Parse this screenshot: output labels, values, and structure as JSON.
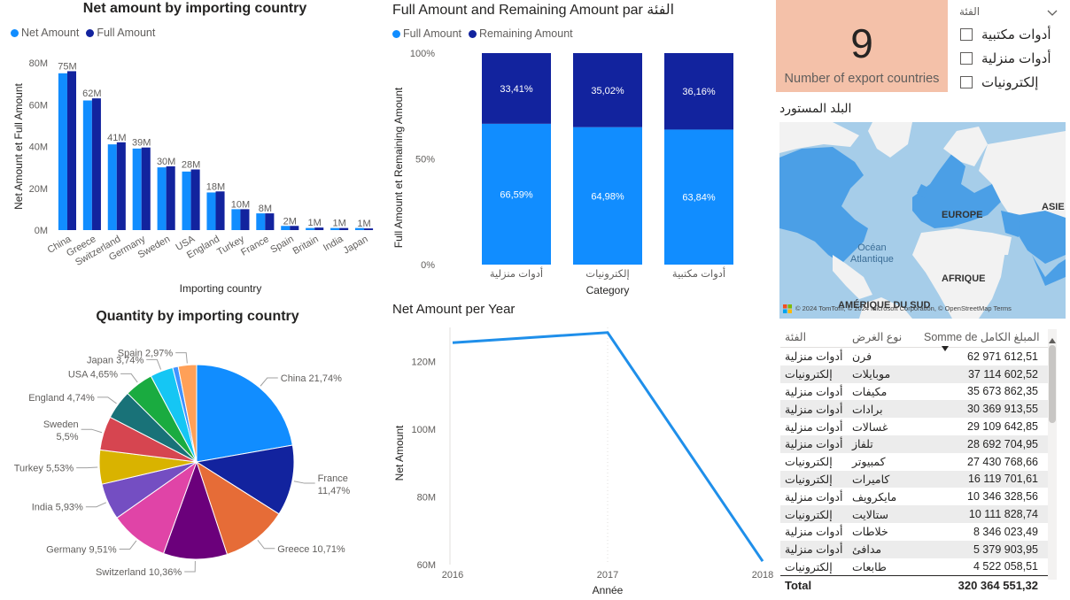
{
  "colors": {
    "net": "#118dff",
    "full": "#12239e",
    "line": "#1f8fea",
    "card_bg": "#f4c1a9",
    "map_water": "#a6cde9",
    "map_land": "#f2f2f2",
    "map_highlight": "#4b9fe6"
  },
  "chart_data": [
    {
      "type": "bar",
      "title": "Net amount by importing country",
      "xlabel": "Importing country",
      "ylabel": "Net Amount et Full Amount",
      "ylim": [
        0,
        80
      ],
      "yticks": [
        "0M",
        "20M",
        "40M",
        "60M",
        "80M"
      ],
      "legend_placement": "top-left",
      "categories": [
        "China",
        "Greece",
        "Switzerland",
        "Germany",
        "Sweden",
        "USA",
        "England",
        "Turkey",
        "France",
        "Spain",
        "Britain",
        "India",
        "Japan"
      ],
      "series": [
        {
          "name": "Net Amount",
          "values": [
            75,
            62,
            41,
            39,
            30,
            28,
            18,
            10,
            8,
            2,
            1,
            1,
            1
          ]
        },
        {
          "name": "Full Amount",
          "values": [
            76,
            63,
            42,
            39.5,
            30.5,
            29,
            18.5,
            10,
            8,
            2,
            1.2,
            1,
            0.8
          ]
        }
      ],
      "data_labels": [
        "75M",
        "62M",
        "41M",
        "39M",
        "30M",
        "28M",
        "18M",
        "10M",
        "8M",
        "2M",
        "1M",
        "1M",
        "1M"
      ]
    },
    {
      "type": "bar",
      "stacked": "100%",
      "title": "Full Amount and Remaining Amount par الفئة",
      "xlabel": "Category",
      "ylabel": "Full Amount et Remaining Amount",
      "yticks": [
        "0%",
        "50%",
        "100%"
      ],
      "legend_placement": "top-left",
      "categories": [
        "أدوات منزلية",
        "إلكترونيات",
        "أدوات مكتبية"
      ],
      "series": [
        {
          "name": "Full Amount",
          "values": [
            66.59,
            64.98,
            63.84
          ],
          "labels": [
            "66,59%",
            "64,98%",
            "63,84%"
          ]
        },
        {
          "name": "Remaining Amount",
          "values": [
            33.41,
            35.02,
            36.16
          ],
          "labels": [
            "33,41%",
            "35,02%",
            "36,16%"
          ]
        }
      ]
    },
    {
      "type": "pie",
      "title": "Quantity by importing country",
      "slices": [
        {
          "label": "China",
          "value": 21.74,
          "text": "China 21,74%",
          "color": "#118dff"
        },
        {
          "label": "France",
          "value": 11.47,
          "text": "France 11,47%",
          "color": "#12239e"
        },
        {
          "label": "Greece",
          "value": 10.71,
          "text": "Greece 10,71%",
          "color": "#e66c37"
        },
        {
          "label": "Switzerland",
          "value": 10.36,
          "text": "Switzerland 10,36%",
          "color": "#6b007b"
        },
        {
          "label": "Germany",
          "value": 9.51,
          "text": "Germany 9,51%",
          "color": "#e044a7"
        },
        {
          "label": "India",
          "value": 5.93,
          "text": "India 5,93%",
          "color": "#744ec2"
        },
        {
          "label": "Turkey",
          "value": 5.53,
          "text": "Turkey 5,53%",
          "color": "#d9b300"
        },
        {
          "label": "Sweden",
          "value": 5.5,
          "text": "Sweden 5,5%",
          "color": "#d64550"
        },
        {
          "label": "England",
          "value": 4.74,
          "text": "England 4,74%",
          "color": "#197278"
        },
        {
          "label": "USA",
          "value": 4.65,
          "text": "USA 4,65%",
          "color": "#1aab40"
        },
        {
          "label": "Japan",
          "value": 3.74,
          "text": "Japan 3,74%",
          "color": "#15c6f4"
        },
        {
          "label": "",
          "value": 0.9,
          "text": "",
          "color": "#4092ff"
        },
        {
          "label": "Spain",
          "value": 2.97,
          "text": "Spain 2,97%",
          "color": "#ffa058"
        }
      ]
    },
    {
      "type": "line",
      "title": "Net Amount per Year",
      "xlabel": "Année",
      "ylabel": "Net Amount",
      "x": [
        "2016",
        "2017",
        "2018"
      ],
      "ylim": [
        60,
        130
      ],
      "yticks": [
        "60M",
        "80M",
        "100M",
        "120M"
      ],
      "series": [
        {
          "name": "Net Amount",
          "values": [
            125.5,
            128.5,
            61
          ]
        }
      ]
    }
  ],
  "card": {
    "value": "9",
    "label": "Number of export countries"
  },
  "slicer": {
    "title": "الفئة",
    "items": [
      "أدوات مكتبية",
      "أدوات منزلية",
      "إلكترونيات"
    ]
  },
  "map": {
    "title": "البلد المستورد",
    "labels": {
      "europe": "EUROPE",
      "asie": "ASIE",
      "ocean": "Océan\nAtlantique",
      "afrique": "AFRIQUE",
      "amerique": "AMÉRIQUE DU SUD"
    },
    "copyright": "© 2024 TomTom, © 2024 Microsoft Corporation, © OpenStreetMap Terms"
  },
  "table": {
    "headers": {
      "category": "الفئة",
      "type": "نوع الغرض",
      "sum": "Somme de المبلغ الكامل"
    },
    "rows": [
      [
        "أدوات منزلية",
        "فرن",
        "62 971 612,51"
      ],
      [
        "إلكترونيات",
        "موبايلات",
        "37 114 602,52"
      ],
      [
        "أدوات منزلية",
        "مكيفات",
        "35 673 862,35"
      ],
      [
        "أدوات منزلية",
        "برادات",
        "30 369 913,55"
      ],
      [
        "أدوات منزلية",
        "غسالات",
        "29 109 642,85"
      ],
      [
        "أدوات منزلية",
        "تلفاز",
        "28 692 704,95"
      ],
      [
        "إلكترونيات",
        "كمبيوتر",
        "27 430 768,66"
      ],
      [
        "إلكترونيات",
        "كاميرات",
        "16 119 701,61"
      ],
      [
        "أدوات منزلية",
        "مايكرويف",
        "10 346 328,56"
      ],
      [
        "إلكترونيات",
        "ستالايت",
        "10 111 828,74"
      ],
      [
        "أدوات منزلية",
        "خلاطات",
        "8 346 023,49"
      ],
      [
        "أدوات منزلية",
        "مدافئ",
        "5 379 903,95"
      ],
      [
        "إلكترونيات",
        "طابعات",
        "4 522 058,51"
      ]
    ],
    "total_label": "Total",
    "total_value": "320 364 551,32"
  }
}
